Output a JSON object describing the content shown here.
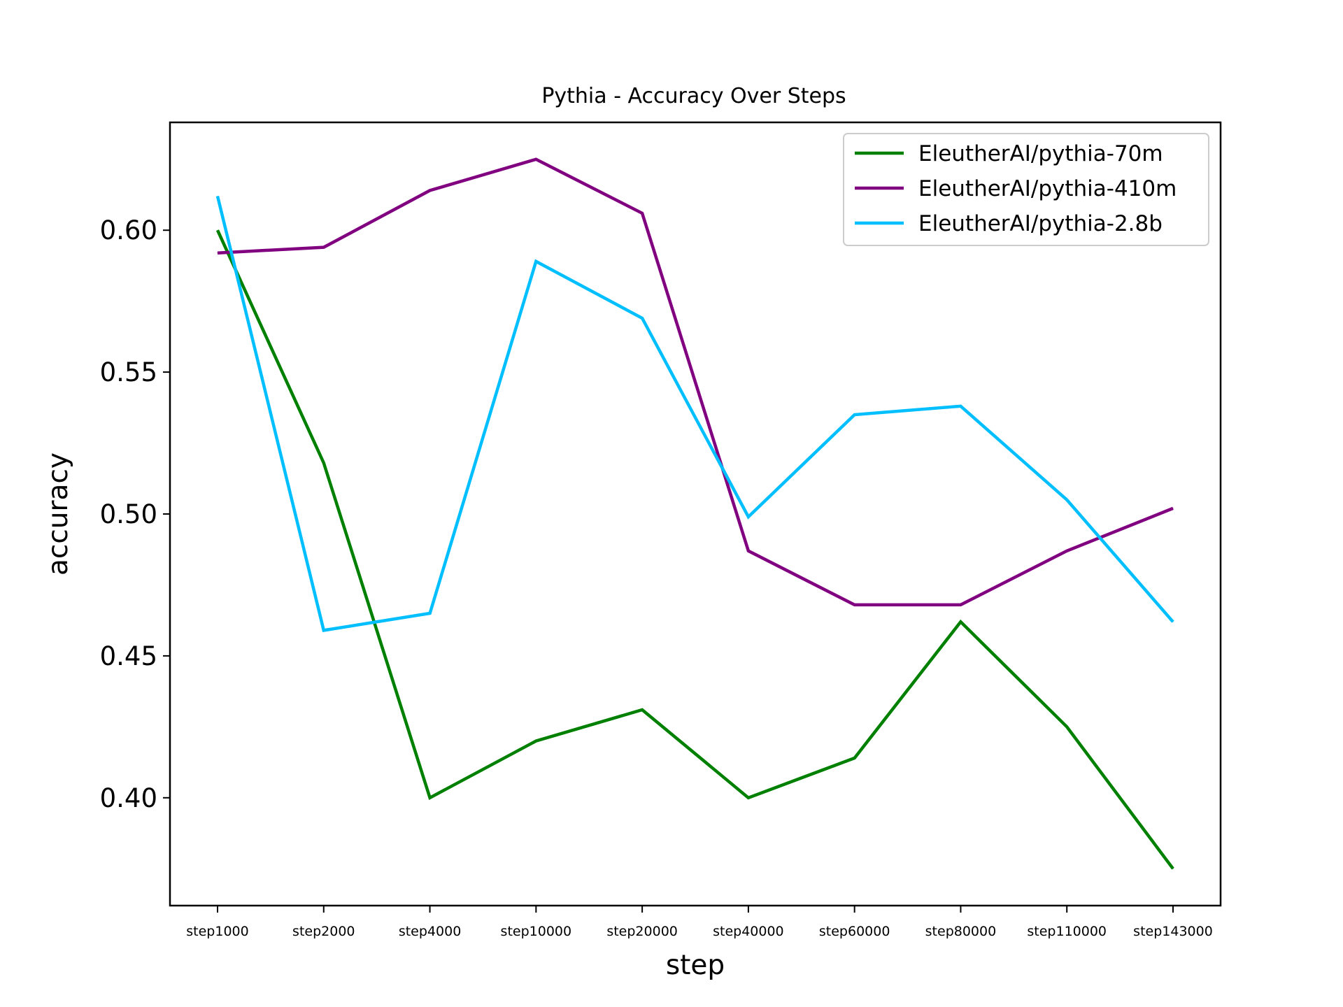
{
  "chart_data": {
    "type": "line",
    "title": "Pythia - Accuracy Over Steps",
    "xlabel": "step",
    "ylabel": "accuracy",
    "categories": [
      "step1000",
      "step2000",
      "step4000",
      "step10000",
      "step20000",
      "step40000",
      "step60000",
      "step80000",
      "step110000",
      "step143000"
    ],
    "ylim": [
      0.362,
      0.638
    ],
    "yticks": [
      0.4,
      0.45,
      0.5,
      0.55,
      0.6
    ],
    "ytick_labels": [
      "0.40",
      "0.45",
      "0.50",
      "0.55",
      "0.60"
    ],
    "grid": false,
    "legend": "top-right",
    "series": [
      {
        "name": "EleutherAI/pythia-70m",
        "color": "#008000",
        "values": [
          0.6,
          0.518,
          0.4,
          0.42,
          0.431,
          0.4,
          0.414,
          0.462,
          0.425,
          0.375
        ]
      },
      {
        "name": "EleutherAI/pythia-410m",
        "color": "#800080",
        "values": [
          0.592,
          0.594,
          0.614,
          0.625,
          0.606,
          0.487,
          0.468,
          0.468,
          0.487,
          0.502
        ]
      },
      {
        "name": "EleutherAI/pythia-2.8b",
        "color": "#00bfff",
        "values": [
          0.612,
          0.459,
          0.465,
          0.589,
          0.569,
          0.499,
          0.535,
          0.538,
          0.505,
          0.462
        ]
      }
    ]
  }
}
